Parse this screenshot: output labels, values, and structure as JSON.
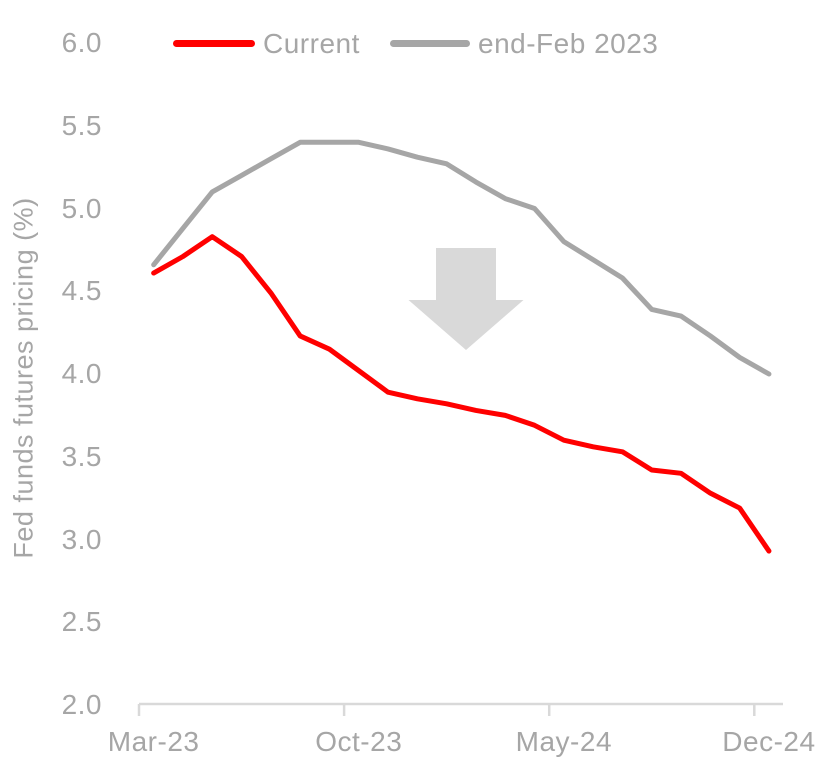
{
  "chart_data": {
    "type": "line",
    "title": "",
    "xlabel": "",
    "ylabel": "Fed funds futures pricing (%)",
    "ylim": [
      2.0,
      6.0
    ],
    "y_tick_labels": [
      "6.0",
      "5.5",
      "5.0",
      "4.5",
      "4.0",
      "3.5",
      "3.0",
      "2.5",
      "2.0"
    ],
    "x_categories": [
      "Mar-23",
      "Apr-23",
      "May-23",
      "Jun-23",
      "Jul-23",
      "Aug-23",
      "Sep-23",
      "Oct-23",
      "Nov-23",
      "Dec-23",
      "Jan-24",
      "Feb-24",
      "Mar-24",
      "Apr-24",
      "May-24",
      "Jun-24",
      "Jul-24",
      "Aug-24",
      "Sep-24",
      "Oct-24",
      "Nov-24",
      "Dec-24"
    ],
    "x_tick_labels": [
      "Mar-23",
      "Oct-23",
      "May-24",
      "Dec-24"
    ],
    "x_tick_indices": [
      0,
      7,
      14,
      21
    ],
    "grid": false,
    "legend_position": "top",
    "series": [
      {
        "name": "Current",
        "color": "#ff0000",
        "values": [
          4.61,
          4.71,
          4.83,
          4.71,
          4.49,
          4.23,
          4.15,
          4.02,
          3.89,
          3.85,
          3.82,
          3.78,
          3.75,
          3.69,
          3.6,
          3.56,
          3.53,
          3.42,
          3.4,
          3.28,
          3.19,
          2.93
        ]
      },
      {
        "name": "end-Feb 2023",
        "color": "#a6a6a6",
        "values": [
          4.66,
          4.88,
          5.1,
          5.2,
          5.3,
          5.4,
          5.4,
          5.4,
          5.36,
          5.31,
          5.27,
          5.16,
          5.06,
          5.0,
          4.8,
          4.69,
          4.58,
          4.39,
          4.35,
          4.23,
          4.1,
          4.0
        ]
      }
    ],
    "annotation": {
      "type": "down-arrow",
      "color": "#d9d9d9"
    }
  },
  "colors": {
    "axis": "#d9d9d9",
    "text": "#a6a6a6",
    "background": "#ffffff"
  }
}
